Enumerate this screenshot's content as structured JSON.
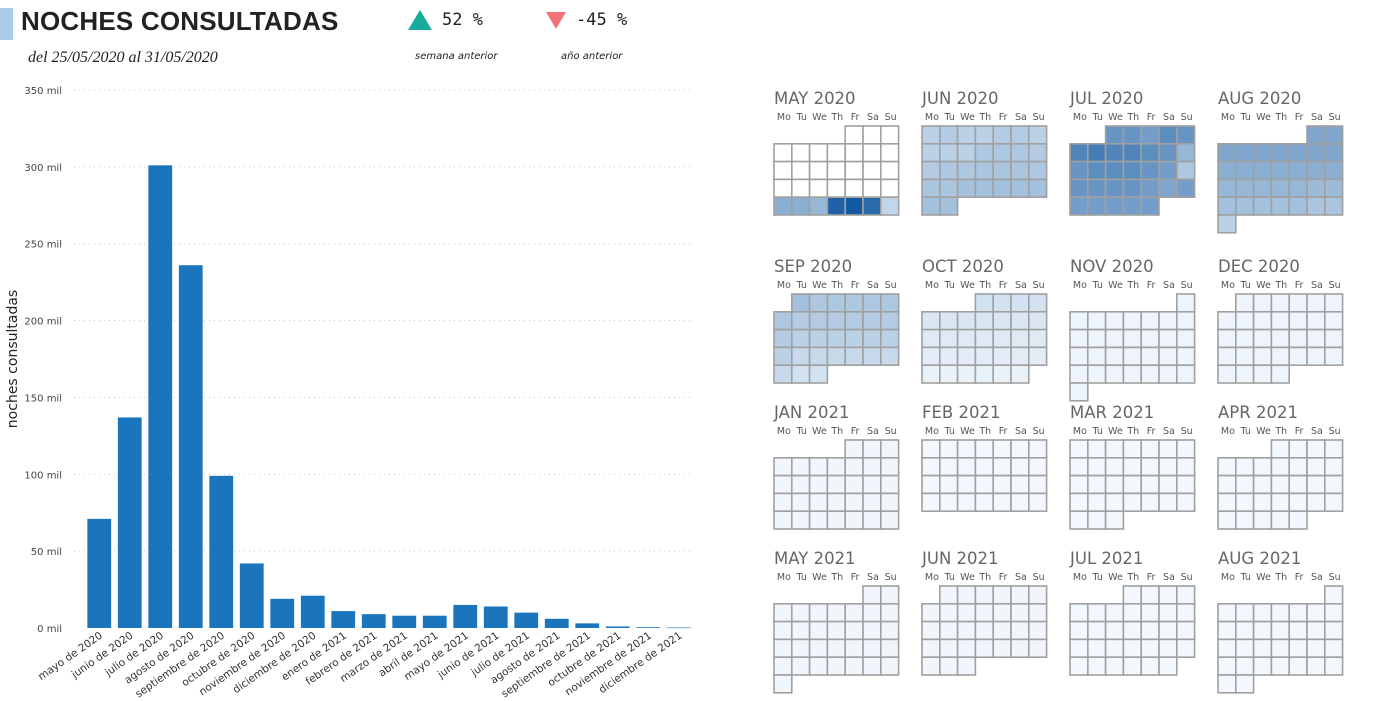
{
  "header": {
    "title": "NOCHES CONSULTADAS",
    "subtitle": "del 25/05/2020 al 31/05/2020",
    "kpi_week": {
      "value": "52 %",
      "label": "semana anterior",
      "direction": "up",
      "color": "#17ab9c"
    },
    "kpi_year": {
      "value": "-45 %",
      "label": "año anterior",
      "direction": "down",
      "color": "#f17377"
    }
  },
  "chart_data": {
    "type": "bar",
    "title": "",
    "xlabel": "",
    "ylabel": "noches consultadas",
    "ylim": [
      0,
      350000
    ],
    "yticks": [
      0,
      50000,
      100000,
      150000,
      200000,
      250000,
      300000,
      350000
    ],
    "ytick_labels": [
      "0 mil",
      "50 mil",
      "100 mil",
      "150 mil",
      "200 mil",
      "250 mil",
      "300 mil",
      "350 mil"
    ],
    "grid": true,
    "bar_color": "#1a75bc",
    "categories": [
      "mayo de 2020",
      "junio de 2020",
      "julio de 2020",
      "agosto de 2020",
      "septiembre de 2020",
      "octubre de 2020",
      "noviembre de 2020",
      "diciembre de 2020",
      "enero de 2021",
      "febrero de 2021",
      "marzo de 2021",
      "abril de 2021",
      "mayo de 2021",
      "junio de 2021",
      "julio de 2021",
      "agosto de 2021",
      "septiembre de 2021",
      "octubre de 2021",
      "noviembre de 2021",
      "diciembre de 2021"
    ],
    "values": [
      71000,
      137000,
      301000,
      236000,
      99000,
      42000,
      19000,
      21000,
      11000,
      9000,
      8000,
      8000,
      15000,
      14000,
      10000,
      6000,
      3000,
      1000,
      500,
      300
    ]
  },
  "calendar": {
    "weekdays": [
      "Mo",
      "Tu",
      "We",
      "Th",
      "Fr",
      "Sa",
      "Su"
    ],
    "months": [
      {
        "label": "MAY 2020",
        "offset": 4,
        "days": 31,
        "intensity": [
          0,
          0,
          0,
          0,
          0,
          0,
          0,
          0,
          0,
          0,
          0,
          0,
          0,
          0,
          0,
          0,
          0,
          0,
          0,
          0,
          0,
          0,
          0,
          0,
          0.45,
          0.45,
          0.4,
          0.9,
          0.95,
          0.85,
          0.22
        ]
      },
      {
        "label": "JUN 2020",
        "offset": 0,
        "days": 30,
        "intensity": [
          0.25,
          0.28,
          0.25,
          0.25,
          0.28,
          0.28,
          0.25,
          0.25,
          0.25,
          0.25,
          0.3,
          0.3,
          0.3,
          0.28,
          0.28,
          0.3,
          0.3,
          0.32,
          0.32,
          0.32,
          0.3,
          0.32,
          0.32,
          0.35,
          0.35,
          0.35,
          0.35,
          0.35,
          0.35,
          0.35
        ]
      },
      {
        "label": "JUL 2020",
        "offset": 2,
        "days": 31,
        "intensity": [
          0.6,
          0.6,
          0.55,
          0.65,
          0.6,
          0.7,
          0.75,
          0.7,
          0.7,
          0.65,
          0.6,
          0.4,
          0.6,
          0.65,
          0.65,
          0.65,
          0.6,
          0.55,
          0.3,
          0.6,
          0.6,
          0.6,
          0.6,
          0.55,
          0.5,
          0.55,
          0.55,
          0.55,
          0.55,
          0.55,
          0.55
        ]
      },
      {
        "label": "AUG 2020",
        "offset": 5,
        "days": 31,
        "intensity": [
          0.5,
          0.5,
          0.5,
          0.5,
          0.5,
          0.5,
          0.5,
          0.5,
          0.5,
          0.45,
          0.45,
          0.45,
          0.45,
          0.45,
          0.45,
          0.45,
          0.4,
          0.4,
          0.4,
          0.4,
          0.4,
          0.38,
          0.38,
          0.35,
          0.35,
          0.35,
          0.35,
          0.35,
          0.32,
          0.32,
          0.25
        ]
      },
      {
        "label": "SEP 2020",
        "offset": 1,
        "days": 30,
        "intensity": [
          0.35,
          0.3,
          0.3,
          0.3,
          0.3,
          0.3,
          0.3,
          0.28,
          0.28,
          0.28,
          0.28,
          0.28,
          0.28,
          0.28,
          0.25,
          0.25,
          0.25,
          0.25,
          0.25,
          0.25,
          0.25,
          0.2,
          0.2,
          0.2,
          0.2,
          0.2,
          0.2,
          0.2,
          0.15,
          0.15
        ]
      },
      {
        "label": "OCT 2020",
        "offset": 3,
        "days": 31,
        "intensity": [
          0.15,
          0.15,
          0.15,
          0.15,
          0.12,
          0.12,
          0.12,
          0.12,
          0.12,
          0.12,
          0.12,
          0.1,
          0.1,
          0.1,
          0.1,
          0.1,
          0.1,
          0.1,
          0.08,
          0.08,
          0.08,
          0.08,
          0.08,
          0.08,
          0.08,
          0.06,
          0.06,
          0.06,
          0.06,
          0.06,
          0.06
        ]
      },
      {
        "label": "NOV 2020",
        "offset": 6,
        "days": 30,
        "intensity": [
          0.04,
          0.04,
          0.04,
          0.04,
          0.04,
          0.04,
          0.04,
          0.04,
          0.04,
          0.04,
          0.04,
          0.04,
          0.04,
          0.04,
          0.04,
          0.04,
          0.04,
          0.04,
          0.04,
          0.04,
          0.04,
          0.04,
          0.04,
          0.04,
          0.04,
          0.04,
          0.04,
          0.04,
          0.04,
          0.04
        ]
      },
      {
        "label": "DEC 2020",
        "offset": 1,
        "days": 31,
        "intensity": [
          0.04,
          0.04,
          0.04,
          0.04,
          0.04,
          0.04,
          0.04,
          0.04,
          0.04,
          0.04,
          0.04,
          0.04,
          0.04,
          0.04,
          0.04,
          0.04,
          0.04,
          0.04,
          0.04,
          0.04,
          0.04,
          0.04,
          0.04,
          0.04,
          0.04,
          0.04,
          0.04,
          0.04,
          0.04,
          0.04,
          0.04
        ]
      },
      {
        "label": "JAN 2021",
        "offset": 4,
        "days": 31,
        "intensity": [
          0.03,
          0.03,
          0.03,
          0.03,
          0.03,
          0.03,
          0.03,
          0.03,
          0.03,
          0.03,
          0.03,
          0.03,
          0.03,
          0.03,
          0.03,
          0.03,
          0.03,
          0.03,
          0.03,
          0.03,
          0.03,
          0.03,
          0.03,
          0.03,
          0.03,
          0.03,
          0.03,
          0.03,
          0.03,
          0.03,
          0.03
        ]
      },
      {
        "label": "FEB 2021",
        "offset": 0,
        "days": 28,
        "intensity": [
          0.02,
          0.02,
          0.02,
          0.02,
          0.02,
          0.02,
          0.02,
          0.02,
          0.02,
          0.02,
          0.02,
          0.02,
          0.02,
          0.02,
          0.02,
          0.02,
          0.02,
          0.02,
          0.02,
          0.02,
          0.02,
          0.02,
          0.02,
          0.02,
          0.02,
          0.02,
          0.02,
          0.02
        ]
      },
      {
        "label": "MAR 2021",
        "offset": 0,
        "days": 31,
        "intensity": [
          0.02,
          0.02,
          0.02,
          0.02,
          0.02,
          0.02,
          0.02,
          0.02,
          0.02,
          0.02,
          0.02,
          0.02,
          0.02,
          0.02,
          0.02,
          0.02,
          0.02,
          0.02,
          0.02,
          0.02,
          0.02,
          0.02,
          0.02,
          0.02,
          0.02,
          0.02,
          0.02,
          0.02,
          0.02,
          0.02,
          0.02
        ]
      },
      {
        "label": "APR 2021",
        "offset": 3,
        "days": 30,
        "intensity": [
          0.02,
          0.02,
          0.02,
          0.02,
          0.02,
          0.02,
          0.02,
          0.02,
          0.02,
          0.02,
          0.02,
          0.02,
          0.02,
          0.02,
          0.02,
          0.02,
          0.02,
          0.02,
          0.02,
          0.02,
          0.02,
          0.02,
          0.02,
          0.02,
          0.02,
          0.02,
          0.02,
          0.02,
          0.02,
          0.02
        ]
      },
      {
        "label": "MAY 2021",
        "offset": 5,
        "days": 31,
        "intensity": [
          0.03,
          0.03,
          0.03,
          0.03,
          0.03,
          0.03,
          0.03,
          0.03,
          0.03,
          0.03,
          0.03,
          0.03,
          0.03,
          0.03,
          0.03,
          0.03,
          0.03,
          0.03,
          0.03,
          0.03,
          0.03,
          0.03,
          0.03,
          0.03,
          0.03,
          0.03,
          0.03,
          0.03,
          0.03,
          0.03,
          0.03
        ]
      },
      {
        "label": "JUN 2021",
        "offset": 1,
        "days": 30,
        "intensity": [
          0.03,
          0.03,
          0.03,
          0.03,
          0.03,
          0.03,
          0.03,
          0.03,
          0.03,
          0.03,
          0.03,
          0.03,
          0.03,
          0.03,
          0.03,
          0.03,
          0.03,
          0.03,
          0.03,
          0.03,
          0.03,
          0.03,
          0.03,
          0.03,
          0.03,
          0.03,
          0.03,
          0.03,
          0.03,
          0.03
        ]
      },
      {
        "label": "JUL 2021",
        "offset": 3,
        "days": 31,
        "intensity": [
          0.02,
          0.02,
          0.02,
          0.02,
          0.02,
          0.02,
          0.02,
          0.02,
          0.02,
          0.02,
          0.02,
          0.02,
          0.02,
          0.02,
          0.02,
          0.02,
          0.02,
          0.02,
          0.02,
          0.02,
          0.02,
          0.02,
          0.02,
          0.02,
          0.02,
          0.02,
          0.02,
          0.02,
          0.02,
          0.02,
          0.02
        ]
      },
      {
        "label": "AUG 2021",
        "offset": 6,
        "days": 31,
        "intensity": [
          0.02,
          0.02,
          0.02,
          0.02,
          0.02,
          0.02,
          0.02,
          0.02,
          0.02,
          0.02,
          0.02,
          0.02,
          0.02,
          0.02,
          0.02,
          0.02,
          0.02,
          0.02,
          0.02,
          0.02,
          0.02,
          0.02,
          0.02,
          0.02,
          0.02,
          0.02,
          0.02,
          0.02,
          0.02,
          0.02,
          0.02
        ]
      }
    ]
  }
}
